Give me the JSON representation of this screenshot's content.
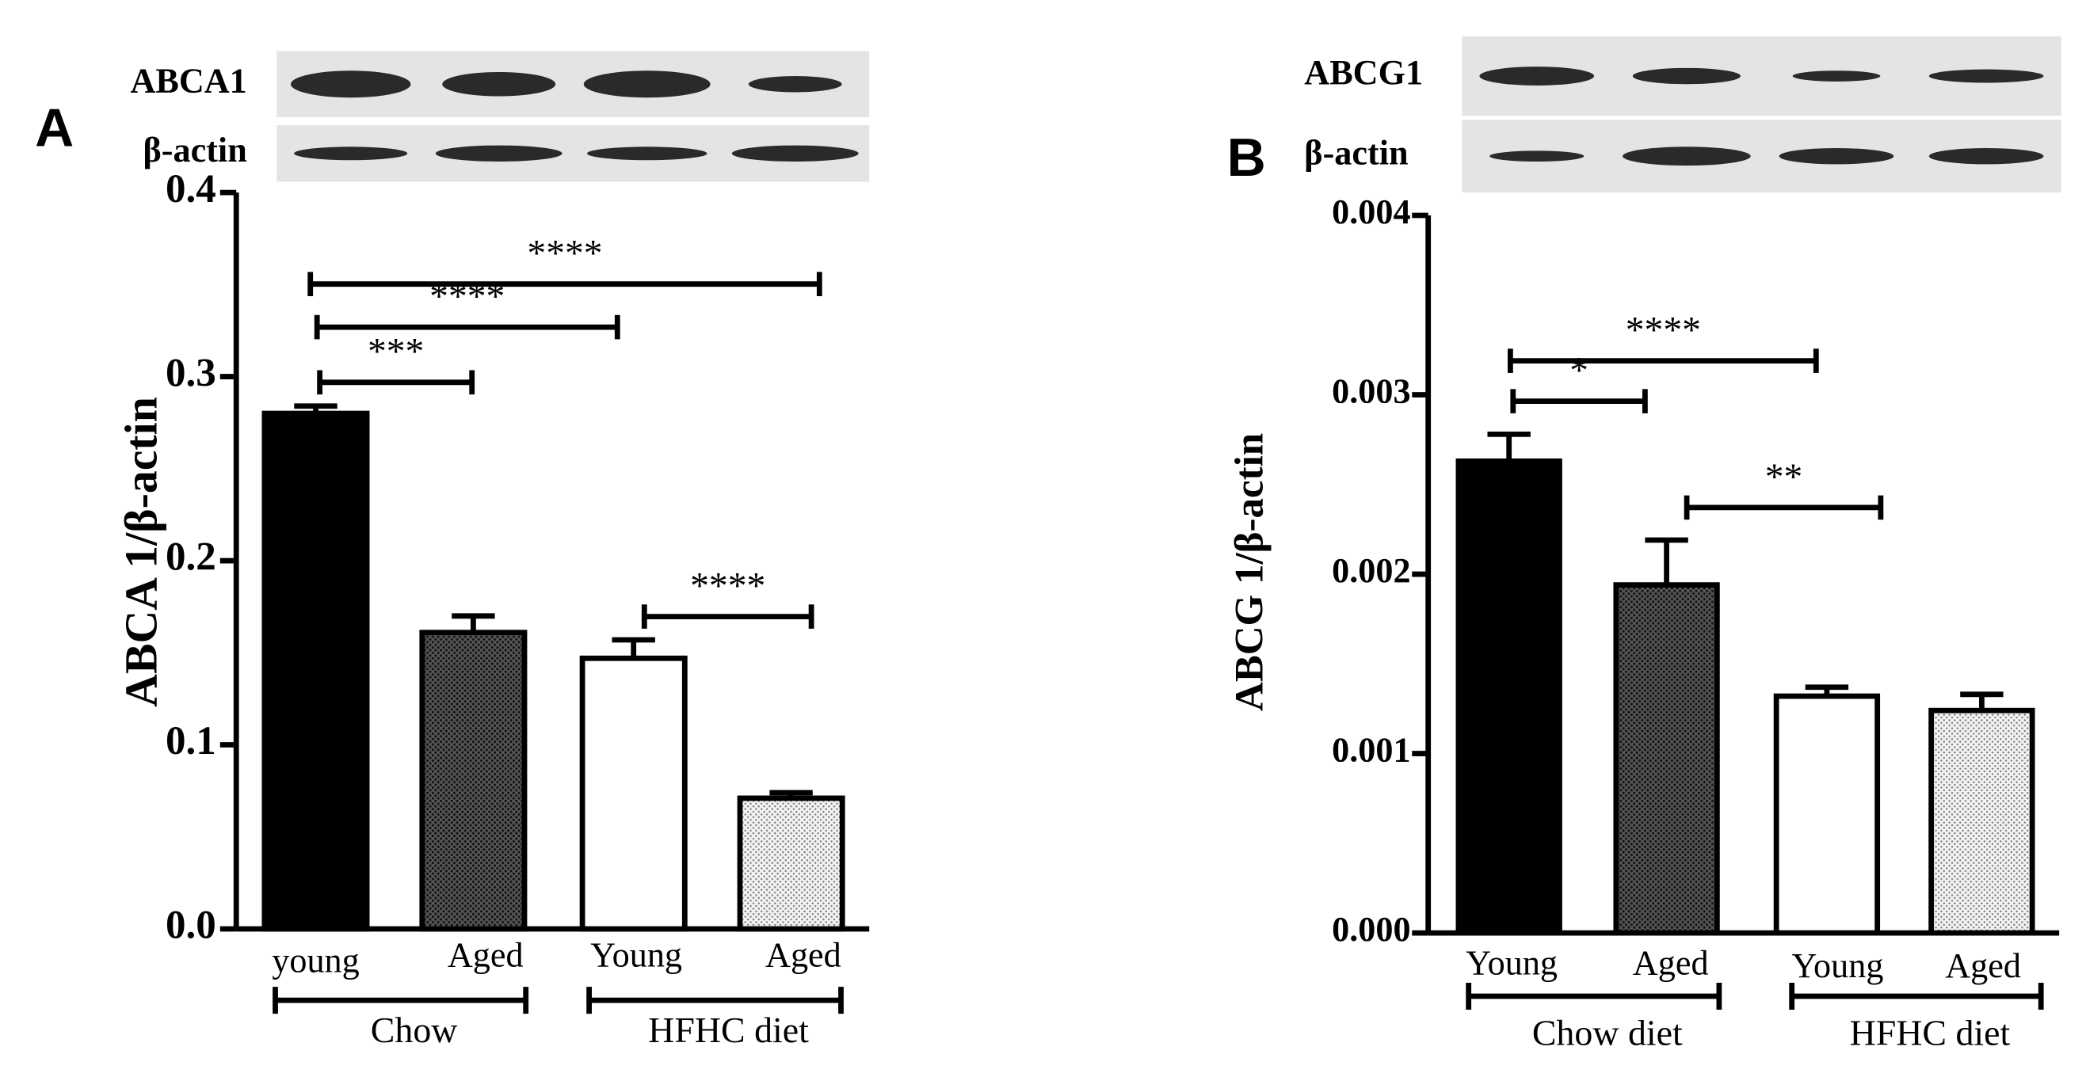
{
  "chart_data": [
    {
      "type": "bar",
      "panel": "A",
      "ylabel": "ABCA 1/β-actin",
      "categories": [
        "young",
        "Aged",
        "Young",
        "Aged"
      ],
      "values": [
        0.28,
        0.161,
        0.147,
        0.071
      ],
      "errors": [
        0.004,
        0.009,
        0.01,
        0.003
      ],
      "colors": [
        "#000000",
        "#3a3a3a",
        "#ffffff",
        "#d9d9d9"
      ],
      "groups": [
        {
          "label": "Chow",
          "span": [
            0,
            1
          ]
        },
        {
          "label": "HFHC diet",
          "span": [
            2,
            3
          ]
        }
      ],
      "comparisons": [
        {
          "between": [
            0,
            1
          ],
          "label": "***"
        },
        {
          "between": [
            0,
            2
          ],
          "label": "****"
        },
        {
          "between": [
            0,
            3
          ],
          "label": "****"
        },
        {
          "between": [
            2,
            3
          ],
          "label": "****"
        }
      ],
      "blot_labels": [
        "ABCA1",
        "β-actin"
      ],
      "ylim": [
        0,
        0.4
      ],
      "yticks": [
        {
          "value": 0,
          "label": "0.0"
        },
        0.1,
        0.2,
        0.3,
        0.4
      ]
    },
    {
      "type": "bar",
      "panel": "B",
      "ylabel": "ABCG 1/β-actin",
      "categories": [
        "Young",
        "Aged",
        "Young",
        "Aged"
      ],
      "values": [
        0.00263,
        0.00194,
        0.00132,
        0.00124
      ],
      "errors": [
        0.00015,
        0.00025,
        5e-05,
        9e-05
      ],
      "colors": [
        "#000000",
        "#3a3a3a",
        "#ffffff",
        "#d9d9d9"
      ],
      "groups": [
        {
          "label": "Chow diet",
          "span": [
            0,
            1
          ]
        },
        {
          "label": "HFHC diet",
          "span": [
            2,
            3
          ]
        }
      ],
      "comparisons": [
        {
          "between": [
            0,
            1
          ],
          "label": "*"
        },
        {
          "between": [
            0,
            2
          ],
          "label": "****"
        },
        {
          "between": [
            1,
            2
          ],
          "label": "**"
        }
      ],
      "blot_labels": [
        "ABCG1",
        "β-actin"
      ],
      "ylim": [
        0,
        0.004
      ],
      "yticks": [
        {
          "value": 0,
          "label": "0.000"
        },
        0.001,
        0.002,
        0.003,
        0.004
      ]
    }
  ]
}
